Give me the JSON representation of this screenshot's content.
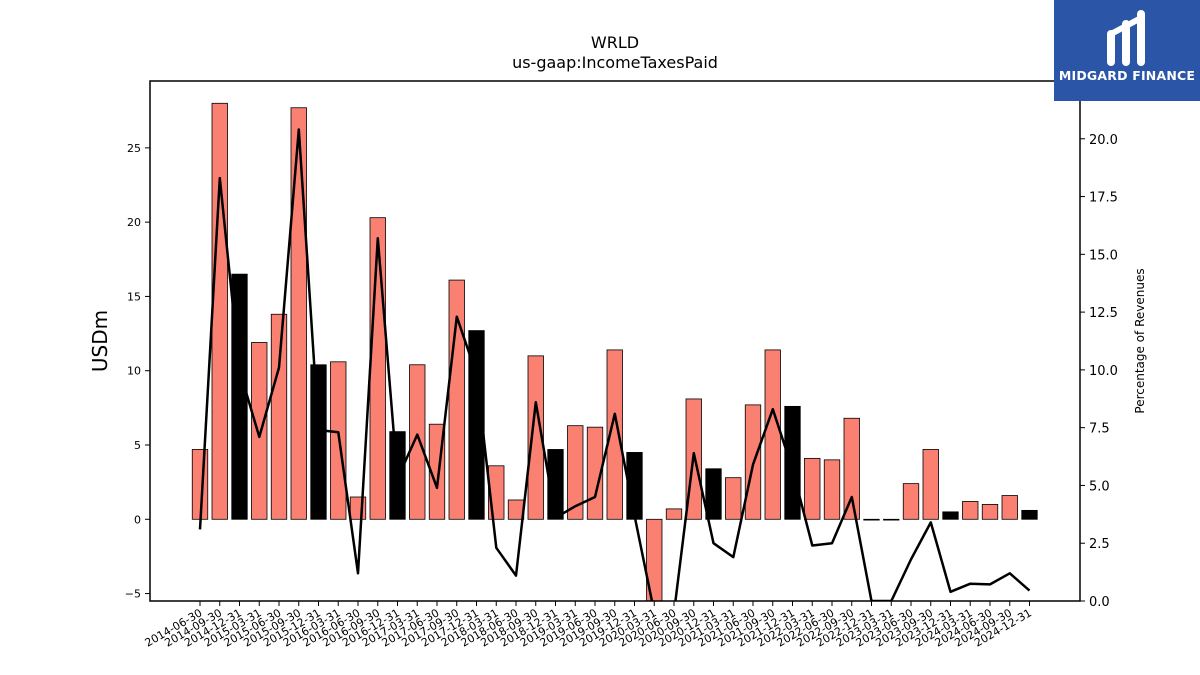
{
  "chart_data": {
    "type": "bar",
    "title": "WRLD",
    "subtitle": "us-gaap:IncomeTaxesPaid",
    "ylabel": "USDm",
    "y2label": "Percentage of Revenues",
    "ylim": [
      -5.5,
      29.5
    ],
    "y2lim": [
      0,
      22.5
    ],
    "yticks": [
      -5,
      0,
      5,
      10,
      15,
      20,
      25
    ],
    "y2ticks": [
      "0.0",
      "2.5",
      "5.0",
      "7.5",
      "10.0",
      "12.5",
      "15.0",
      "17.5",
      "20.0"
    ],
    "categories": [
      "2014-06-30",
      "2014-09-30",
      "2014-12-31",
      "2015-03-31",
      "2015-06-30",
      "2015-09-30",
      "2015-12-31",
      "2016-03-31",
      "2016-06-30",
      "2016-09-30",
      "2016-12-31",
      "2017-03-31",
      "2017-06-30",
      "2017-09-30",
      "2017-12-31",
      "2018-03-31",
      "2018-06-30",
      "2018-09-30",
      "2018-12-31",
      "2019-03-31",
      "2019-06-30",
      "2019-09-30",
      "2019-12-31",
      "2020-03-31",
      "2020-06-30",
      "2020-09-30",
      "2020-12-31",
      "2021-03-31",
      "2021-06-30",
      "2021-09-30",
      "2021-12-31",
      "2022-03-31",
      "2022-06-30",
      "2022-09-30",
      "2022-12-31",
      "2023-03-31",
      "2023-06-30",
      "2023-09-30",
      "2023-12-31",
      "2024-03-31",
      "2024-06-30",
      "2024-09-30",
      "2024-12-31"
    ],
    "series": [
      {
        "type": "bar",
        "values": [
          4.7,
          28.0,
          16.5,
          11.9,
          13.8,
          27.7,
          10.4,
          10.6,
          1.5,
          20.3,
          5.9,
          10.4,
          6.4,
          16.1,
          12.7,
          3.6,
          1.3,
          11.0,
          4.7,
          6.3,
          6.2,
          11.4,
          4.5,
          -6.0,
          0.7,
          8.1,
          3.4,
          2.8,
          7.7,
          11.4,
          7.6,
          4.1,
          4.0,
          6.8,
          0.0,
          0.0,
          2.4,
          4.7,
          0.5,
          1.2,
          1.0,
          1.6,
          0.6
        ],
        "colors": [
          "#fa8072",
          "#fa8072",
          "#000000",
          "#fa8072",
          "#fa8072",
          "#fa8072",
          "#000000",
          "#fa8072",
          "#fa8072",
          "#fa8072",
          "#000000",
          "#fa8072",
          "#fa8072",
          "#fa8072",
          "#000000",
          "#fa8072",
          "#fa8072",
          "#fa8072",
          "#000000",
          "#fa8072",
          "#fa8072",
          "#fa8072",
          "#000000",
          "#fa8072",
          "#fa8072",
          "#fa8072",
          "#000000",
          "#fa8072",
          "#fa8072",
          "#fa8072",
          "#000000",
          "#fa8072",
          "#fa8072",
          "#fa8072",
          "#000000",
          "#fa8072",
          "#fa8072",
          "#fa8072",
          "#000000",
          "#fa8072",
          "#fa8072",
          "#fa8072",
          "#000000"
        ]
      },
      {
        "type": "line",
        "axis": "right",
        "color": "#000000",
        "values": [
          3.1,
          18.3,
          10.0,
          7.1,
          10.1,
          20.4,
          7.4,
          7.3,
          1.2,
          15.7,
          5.3,
          7.2,
          4.9,
          12.3,
          9.8,
          2.3,
          1.1,
          8.6,
          3.6,
          4.1,
          4.5,
          8.1,
          3.7,
          -0.5,
          -0.5,
          6.4,
          2.5,
          1.9,
          5.9,
          8.3,
          5.7,
          2.4,
          2.5,
          4.5,
          0.0,
          0.0,
          1.8,
          3.4,
          0.4,
          0.75,
          0.72,
          1.2,
          0.45
        ]
      }
    ],
    "legend": "none",
    "grid": false
  },
  "logo": {
    "text": "MIDGARD FINANCE",
    "background": "#2b56a8"
  }
}
